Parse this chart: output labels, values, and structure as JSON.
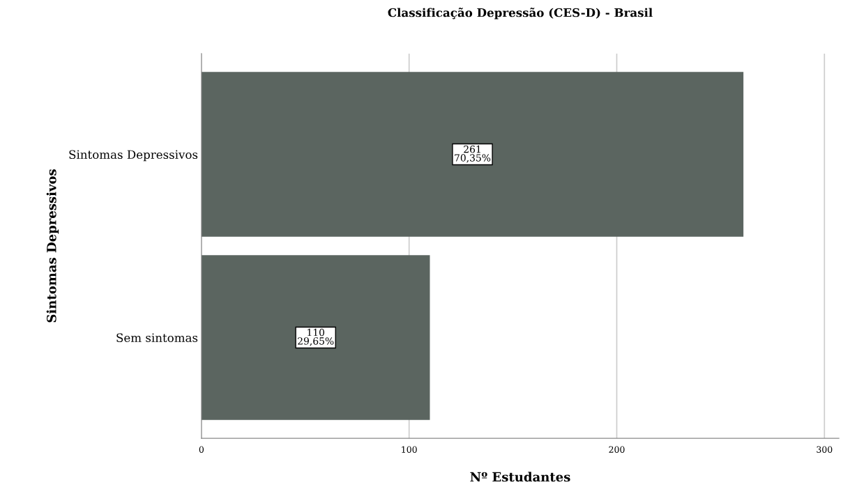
{
  "chart_data": {
    "type": "bar",
    "orientation": "horizontal",
    "title": "Classificação Depressão (CES-D) - Brasil",
    "xlabel": "Nº Estudantes",
    "ylabel": "Sintomas Depressivos",
    "categories": [
      "Sintomas Depressivos",
      "Sem sintomas"
    ],
    "values": [
      261,
      110
    ],
    "value_labels": [
      "261\n70,35%",
      "110\n29,65%"
    ],
    "color": "#5b6560",
    "xlim": [
      0,
      307
    ],
    "xticks": [
      0,
      100,
      200,
      300
    ],
    "grid": "x",
    "legend": false
  }
}
